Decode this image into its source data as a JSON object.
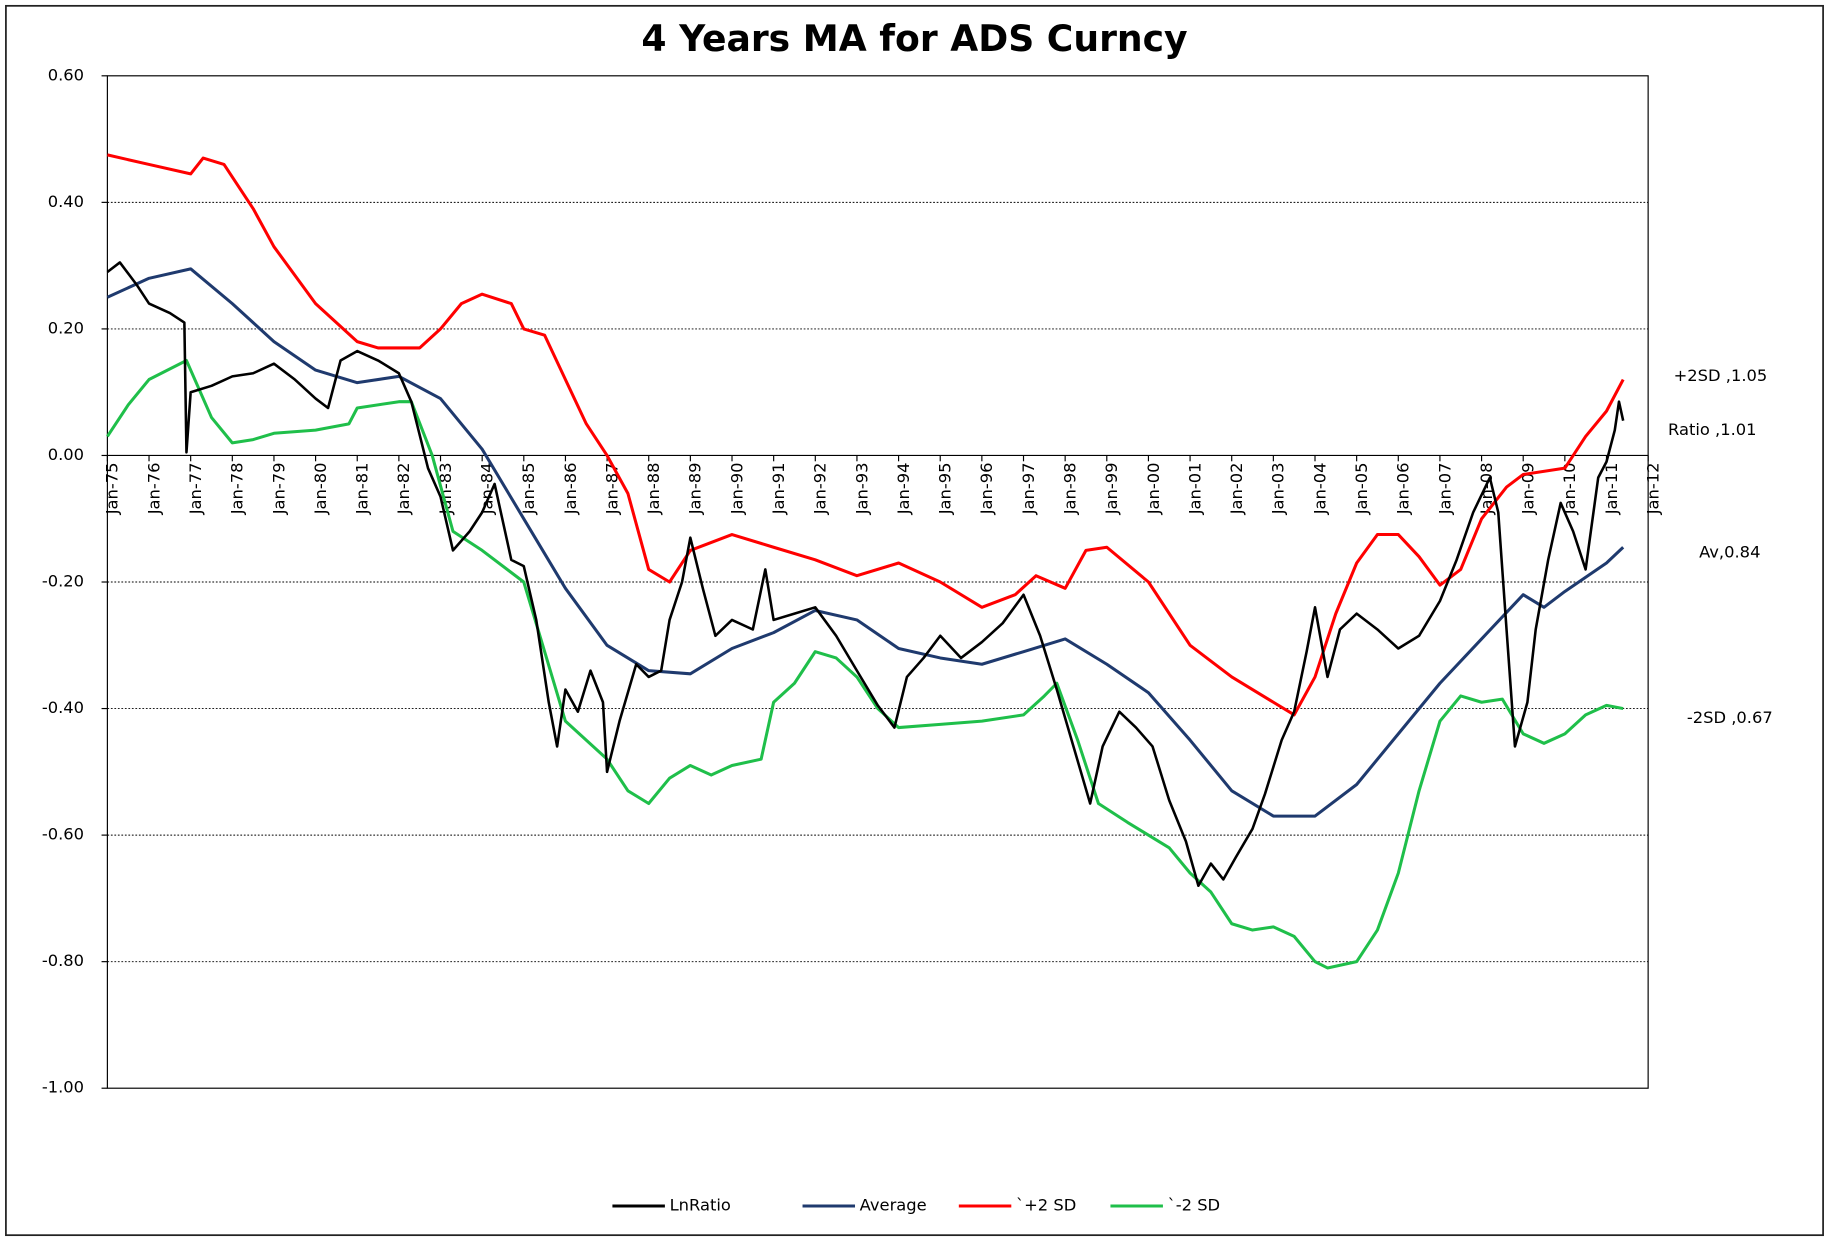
{
  "chart_data": {
    "type": "line",
    "title": "4 Years MA for ADS Curncy",
    "ylim": [
      -1.0,
      0.6
    ],
    "yticks": [
      {
        "value": 0.6,
        "label": "0.60"
      },
      {
        "value": 0.4,
        "label": "0.40"
      },
      {
        "value": 0.2,
        "label": "0.20"
      },
      {
        "value": 0,
        "label": "0.00"
      },
      {
        "value": -0.2,
        "label": "-0.20"
      },
      {
        "value": -0.4,
        "label": "-0.40"
      },
      {
        "value": -0.6,
        "label": "-0.60"
      },
      {
        "value": -0.8,
        "label": "-0.80"
      },
      {
        "value": -1.0,
        "label": "-1.00"
      }
    ],
    "xlim": [
      1975,
      2012
    ],
    "xticks": [
      {
        "value": 1975,
        "label": "Jan-75"
      },
      {
        "value": 1976,
        "label": "Jan-76"
      },
      {
        "value": 1977,
        "label": "Jan-77"
      },
      {
        "value": 1978,
        "label": "Jan-78"
      },
      {
        "value": 1979,
        "label": "Jan-79"
      },
      {
        "value": 1980,
        "label": "Jan-80"
      },
      {
        "value": 1981,
        "label": "Jan-81"
      },
      {
        "value": 1982,
        "label": "Jan-82"
      },
      {
        "value": 1983,
        "label": "Jan-83"
      },
      {
        "value": 1984,
        "label": "Jan-84"
      },
      {
        "value": 1985,
        "label": "Jan-85"
      },
      {
        "value": 1986,
        "label": "Jan-86"
      },
      {
        "value": 1987,
        "label": "Jan-87"
      },
      {
        "value": 1988,
        "label": "Jan-88"
      },
      {
        "value": 1989,
        "label": "Jan-89"
      },
      {
        "value": 1990,
        "label": "Jan-90"
      },
      {
        "value": 1991,
        "label": "Jan-91"
      },
      {
        "value": 1992,
        "label": "Jan-92"
      },
      {
        "value": 1993,
        "label": "Jan-93"
      },
      {
        "value": 1994,
        "label": "Jan-94"
      },
      {
        "value": 1995,
        "label": "Jan-95"
      },
      {
        "value": 1996,
        "label": "Jan-96"
      },
      {
        "value": 1997,
        "label": "Jan-97"
      },
      {
        "value": 1998,
        "label": "Jan-98"
      },
      {
        "value": 1999,
        "label": "Jan-99"
      },
      {
        "value": 2000,
        "label": "Jan-00"
      },
      {
        "value": 2001,
        "label": "Jan-01"
      },
      {
        "value": 2002,
        "label": "Jan-02"
      },
      {
        "value": 2003,
        "label": "Jan-03"
      },
      {
        "value": 2004,
        "label": "Jan-04"
      },
      {
        "value": 2005,
        "label": "Jan-05"
      },
      {
        "value": 2006,
        "label": "Jan-06"
      },
      {
        "value": 2007,
        "label": "Jan-07"
      },
      {
        "value": 2008,
        "label": "Jan-08"
      },
      {
        "value": 2009,
        "label": "Jan-09"
      },
      {
        "value": 2010,
        "label": "Jan-10"
      },
      {
        "value": 2011,
        "label": "Jan-11"
      },
      {
        "value": 2012,
        "label": "Jan-12"
      }
    ],
    "grid": true,
    "legend": "bottom",
    "series": [
      {
        "name": "LnRatio",
        "color": "#000000",
        "x": [
          1975.0,
          1975.3,
          1975.7,
          1976.0,
          1976.5,
          1976.85,
          1976.9,
          1977.0,
          1977.5,
          1978.0,
          1978.5,
          1979.0,
          1979.5,
          1980.0,
          1980.3,
          1980.6,
          1981.0,
          1981.5,
          1982.0,
          1982.3,
          1982.7,
          1983.0,
          1983.3,
          1983.7,
          1984.0,
          1984.3,
          1984.7,
          1985.0,
          1985.3,
          1985.6,
          1985.8,
          1986.0,
          1986.3,
          1986.6,
          1986.9,
          1987.0,
          1987.3,
          1987.7,
          1988.0,
          1988.3,
          1988.5,
          1988.8,
          1989.0,
          1989.3,
          1989.6,
          1990.0,
          1990.5,
          1990.8,
          1991.0,
          1991.5,
          1992.0,
          1992.5,
          1993.0,
          1993.5,
          1993.9,
          1994.2,
          1994.6,
          1995.0,
          1995.5,
          1996.0,
          1996.5,
          1997.0,
          1997.4,
          1997.8,
          1998.2,
          1998.6,
          1998.9,
          1999.3,
          1999.7,
          2000.1,
          2000.5,
          2000.9,
          2001.2,
          2001.5,
          2001.8,
          2002.1,
          2002.5,
          2002.8,
          2003.2,
          2003.5,
          2003.8,
          2004.0,
          2004.3,
          2004.6,
          2005.0,
          2005.5,
          2006.0,
          2006.5,
          2007.0,
          2007.4,
          2007.8,
          2008.2,
          2008.4,
          2008.6,
          2008.8,
          2009.1,
          2009.3,
          2009.6,
          2009.9,
          2010.2,
          2010.5,
          2010.8,
          2011.0,
          2011.2,
          2011.3,
          2011.4
        ],
        "values": [
          0.29,
          0.305,
          0.27,
          0.24,
          0.225,
          0.21,
          0.005,
          0.1,
          0.11,
          0.125,
          0.13,
          0.145,
          0.12,
          0.09,
          0.075,
          0.15,
          0.165,
          0.15,
          0.13,
          0.085,
          -0.02,
          -0.065,
          -0.15,
          -0.12,
          -0.09,
          -0.045,
          -0.165,
          -0.175,
          -0.26,
          -0.39,
          -0.46,
          -0.37,
          -0.405,
          -0.34,
          -0.39,
          -0.5,
          -0.42,
          -0.33,
          -0.35,
          -0.34,
          -0.26,
          -0.2,
          -0.13,
          -0.21,
          -0.285,
          -0.26,
          -0.275,
          -0.18,
          -0.26,
          -0.25,
          -0.24,
          -0.285,
          -0.34,
          -0.395,
          -0.43,
          -0.35,
          -0.32,
          -0.285,
          -0.32,
          -0.295,
          -0.265,
          -0.22,
          -0.285,
          -0.37,
          -0.46,
          -0.55,
          -0.46,
          -0.405,
          -0.43,
          -0.46,
          -0.545,
          -0.61,
          -0.68,
          -0.645,
          -0.67,
          -0.635,
          -0.59,
          -0.535,
          -0.45,
          -0.405,
          -0.31,
          -0.24,
          -0.35,
          -0.275,
          -0.25,
          -0.275,
          -0.305,
          -0.285,
          -0.23,
          -0.165,
          -0.09,
          -0.035,
          -0.09,
          -0.275,
          -0.46,
          -0.39,
          -0.275,
          -0.165,
          -0.075,
          -0.12,
          -0.18,
          -0.035,
          -0.01,
          0.04,
          0.085,
          0.055
        ]
      },
      {
        "name": "Average",
        "color": "#1f3a6e",
        "x": [
          1975,
          1976,
          1977,
          1978,
          1979,
          1980,
          1981,
          1982,
          1983,
          1984,
          1985,
          1986,
          1987,
          1988,
          1989,
          1990,
          1991,
          1992,
          1993,
          1994,
          1995,
          1996,
          1997,
          1998,
          1999,
          2000,
          2001,
          2002,
          2003,
          2004,
          2005,
          2006,
          2007,
          2008,
          2009,
          2009.5,
          2010,
          2011,
          2011.4
        ],
        "values": [
          0.25,
          0.28,
          0.295,
          0.24,
          0.18,
          0.135,
          0.115,
          0.125,
          0.09,
          0.01,
          -0.1,
          -0.21,
          -0.3,
          -0.34,
          -0.345,
          -0.305,
          -0.28,
          -0.245,
          -0.26,
          -0.305,
          -0.32,
          -0.33,
          -0.31,
          -0.29,
          -0.33,
          -0.375,
          -0.45,
          -0.53,
          -0.57,
          -0.57,
          -0.52,
          -0.44,
          -0.36,
          -0.29,
          -0.22,
          -0.24,
          -0.215,
          -0.17,
          -0.145
        ]
      },
      {
        "name": "`+2 SD",
        "color": "#ff0000",
        "x": [
          1975,
          1976,
          1977,
          1977.3,
          1977.8,
          1978.5,
          1979,
          1980,
          1981,
          1981.5,
          1982.5,
          1983,
          1983.5,
          1984,
          1984.7,
          1985,
          1985.5,
          1986,
          1986.5,
          1987,
          1987.5,
          1988,
          1988.5,
          1989,
          1990,
          1991,
          1992,
          1993,
          1994,
          1995,
          1996,
          1996.8,
          1997.3,
          1998,
          1998.5,
          1999,
          2000,
          2001,
          2002,
          2003,
          2003.5,
          2004,
          2004.5,
          2005,
          2005.5,
          2006,
          2006.5,
          2007,
          2007.5,
          2008,
          2008.6,
          2009,
          2010,
          2010.5,
          2011,
          2011.4
        ],
        "values": [
          0.475,
          0.46,
          0.445,
          0.47,
          0.46,
          0.39,
          0.33,
          0.24,
          0.18,
          0.17,
          0.17,
          0.2,
          0.24,
          0.255,
          0.24,
          0.2,
          0.19,
          0.12,
          0.05,
          0.0,
          -0.06,
          -0.18,
          -0.2,
          -0.15,
          -0.125,
          -0.145,
          -0.165,
          -0.19,
          -0.17,
          -0.2,
          -0.24,
          -0.22,
          -0.19,
          -0.21,
          -0.15,
          -0.145,
          -0.2,
          -0.3,
          -0.35,
          -0.39,
          -0.41,
          -0.35,
          -0.25,
          -0.17,
          -0.125,
          -0.125,
          -0.16,
          -0.205,
          -0.18,
          -0.1,
          -0.05,
          -0.03,
          -0.02,
          0.03,
          0.07,
          0.12
        ]
      },
      {
        "name": "`-2 SD",
        "color": "#1fbf4a",
        "x": [
          1975,
          1975.5,
          1976,
          1976.9,
          1977.5,
          1978,
          1978.5,
          1979,
          1980,
          1980.8,
          1981,
          1982,
          1982.3,
          1982.8,
          1983.3,
          1984,
          1985,
          1985.5,
          1986,
          1987,
          1987.5,
          1988,
          1988.5,
          1989,
          1989.5,
          1990,
          1990.7,
          1991,
          1991.5,
          1992,
          1992.5,
          1993,
          1993.5,
          1994,
          1995,
          1996,
          1997,
          1997.5,
          1997.8,
          1998.3,
          1998.8,
          1999.5,
          2000.5,
          2001,
          2001.5,
          2002,
          2002.5,
          2003,
          2003.5,
          2004,
          2004.3,
          2005,
          2005.5,
          2006,
          2006.5,
          2007,
          2007.5,
          2008,
          2008.5,
          2009,
          2009.5,
          2010,
          2010.5,
          2011,
          2011.4
        ],
        "values": [
          0.03,
          0.08,
          0.12,
          0.15,
          0.06,
          0.02,
          0.025,
          0.035,
          0.04,
          0.05,
          0.075,
          0.085,
          0.085,
          0.0,
          -0.12,
          -0.15,
          -0.2,
          -0.31,
          -0.42,
          -0.48,
          -0.53,
          -0.55,
          -0.51,
          -0.49,
          -0.505,
          -0.49,
          -0.48,
          -0.39,
          -0.36,
          -0.31,
          -0.32,
          -0.35,
          -0.4,
          -0.43,
          -0.425,
          -0.42,
          -0.41,
          -0.38,
          -0.36,
          -0.45,
          -0.55,
          -0.58,
          -0.62,
          -0.66,
          -0.69,
          -0.74,
          -0.75,
          -0.745,
          -0.76,
          -0.8,
          -0.81,
          -0.8,
          -0.75,
          -0.66,
          -0.53,
          -0.42,
          -0.38,
          -0.39,
          -0.385,
          -0.44,
          -0.455,
          -0.44,
          -0.41,
          -0.395,
          -0.4
        ]
      }
    ],
    "annotations": [
      "+2SD ,1.05",
      "Ratio ,1.01",
      "Av,0.84",
      "-2SD ,0.67"
    ]
  }
}
